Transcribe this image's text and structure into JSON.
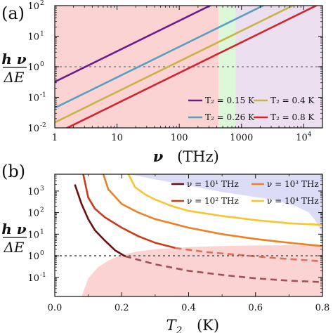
{
  "chart_data": [
    {
      "panel_label": "(a)",
      "type": "line",
      "x_scale": "log",
      "y_scale": "log",
      "xlabel_var": "ν",
      "xlabel_unit": "(THz)",
      "ylabel_num": "h ν",
      "ylabel_den": "ΔE",
      "xlim": [
        1,
        20000
      ],
      "ylim": [
        0.01,
        100
      ],
      "x_ticks": [
        {
          "v": 1,
          "label": "1"
        },
        {
          "v": 10,
          "label": "10"
        },
        {
          "v": 100,
          "label": "100"
        },
        {
          "v": 1000,
          "label": "1000"
        },
        {
          "v": 10000,
          "label": "10",
          "sup": "4"
        }
      ],
      "y_ticks": [
        {
          "v": 0.01,
          "base": "10",
          "sup": "-2"
        },
        {
          "v": 0.1,
          "base": "10",
          "sup": "-1"
        },
        {
          "v": 1,
          "base": "10",
          "sup": "0"
        },
        {
          "v": 10,
          "base": "10",
          "sup": "1"
        },
        {
          "v": 100,
          "base": "10",
          "sup": "2"
        }
      ],
      "regions": [
        {
          "x0": 1,
          "x1": 430,
          "color": "#fbd3d3"
        },
        {
          "x0": 430,
          "x1": 800,
          "color": "#dcf8d8"
        },
        {
          "x0": 800,
          "x1": 20000,
          "color": "#ebdff0"
        }
      ],
      "reference_line": {
        "y": 1,
        "color": "#999999"
      },
      "series": [
        {
          "name": "T₂ = 0.15 K",
          "color": "#6a1d8a",
          "x": [
            1,
            1000
          ],
          "y": [
            0.32,
            320
          ]
        },
        {
          "name": "T₂ = 0.26 K",
          "color": "#5a9ec0",
          "x": [
            1,
            20000
          ],
          "y": [
            0.045,
            900
          ]
        },
        {
          "name": "T₂ = 0.4 K",
          "color": "#c9b44a",
          "x": [
            1,
            20000
          ],
          "y": [
            0.015,
            300
          ]
        },
        {
          "name": "T₂ = 0.8 K",
          "color": "#d3242b",
          "x": [
            1,
            20000
          ],
          "y": [
            0.0063,
            126
          ]
        }
      ],
      "legend_placement": "bottom-right"
    },
    {
      "panel_label": "(b)",
      "type": "line",
      "x_scale": "linear",
      "y_scale": "log",
      "xlabel_var": "T",
      "xlabel_sub": "2",
      "xlabel_unit": "(K)",
      "ylabel_num": "h ν",
      "ylabel_den": "ΔE",
      "xlim": [
        0,
        0.8
      ],
      "ylim": [
        0.013,
        6000
      ],
      "x_ticks": [
        {
          "v": 0,
          "label": "0.0"
        },
        {
          "v": 0.2,
          "label": "0.2"
        },
        {
          "v": 0.4,
          "label": "0.4"
        },
        {
          "v": 0.6,
          "label": "0.6"
        },
        {
          "v": 0.8,
          "label": "0.8"
        }
      ],
      "y_ticks": [
        {
          "v": 0.1,
          "base": "10",
          "sup": "-1"
        },
        {
          "v": 1,
          "base": "10",
          "sup": "0"
        },
        {
          "v": 10,
          "base": "10",
          "sup": "1"
        },
        {
          "v": 100,
          "base": "10",
          "sup": "2"
        },
        {
          "v": 1000,
          "base": "10",
          "sup": "3"
        }
      ],
      "reference_line": {
        "y": 1,
        "color": "#777777"
      },
      "regions": [
        {
          "color": "#fbd3d3",
          "x": [
            0.08,
            0.1,
            0.13,
            0.16,
            0.2,
            0.25,
            0.3,
            0.4,
            0.5,
            0.6,
            0.7,
            0.8,
            0.8,
            0.08
          ],
          "y": [
            0.013,
            0.09,
            0.3,
            0.6,
            1.1,
            1.6,
            2.0,
            2.5,
            2.8,
            3.0,
            3.1,
            3.2,
            0.013,
            0.013
          ]
        },
        {
          "color": "#dcdcf6",
          "x": [
            0.22,
            0.35,
            0.5,
            0.65,
            0.72,
            0.76,
            0.78,
            0.8,
            0.8,
            0.22
          ],
          "y": [
            6000,
            2500,
            900,
            400,
            200,
            100,
            40,
            10,
            6000,
            6000
          ]
        }
      ],
      "series": [
        {
          "name": "ν = 10¹ THz",
          "color": "#6b0f0f",
          "solid": {
            "x": [
              0.06,
              0.08,
              0.1,
              0.12,
              0.15,
              0.18,
              0.21
            ],
            "y": [
              2000,
              250,
              50,
              15,
              5,
              1.8,
              0.95
            ]
          },
          "dashed": {
            "x": [
              0.21,
              0.3,
              0.4,
              0.5,
              0.6,
              0.7,
              0.8
            ],
            "y": [
              0.95,
              0.4,
              0.2,
              0.13,
              0.09,
              0.07,
              0.06
            ]
          }
        },
        {
          "name": "ν = 10² THz",
          "color": "#cc3a1a",
          "solid": {
            "x": [
              0.085,
              0.1,
              0.12,
              0.15,
              0.2,
              0.25,
              0.3,
              0.36
            ],
            "y": [
              6000,
              500,
              150,
              60,
              20,
              8,
              4,
              2.3
            ]
          },
          "dashed": {
            "x": [
              0.36,
              0.45,
              0.55,
              0.65,
              0.8
            ],
            "y": [
              2.3,
              1.5,
              1.1,
              0.8,
              0.55
            ]
          }
        },
        {
          "name": "ν = 10³ THz",
          "color": "#ef7f25",
          "solid": {
            "x": [
              0.145,
              0.16,
              0.2,
              0.25,
              0.3,
              0.4,
              0.5,
              0.6,
              0.7,
              0.8
            ],
            "y": [
              6000,
              1200,
              250,
              100,
              50,
              20,
              10,
              6,
              4,
              2.8
            ]
          }
        },
        {
          "name": "ν = 10⁴ THz",
          "color": "#f7c52c",
          "solid": {
            "x": [
              0.22,
              0.24,
              0.27,
              0.3,
              0.35,
              0.4,
              0.5,
              0.6,
              0.7,
              0.8
            ],
            "y": [
              6000,
              1500,
              700,
              400,
              200,
              120,
              70,
              45,
              32,
              27
            ]
          }
        }
      ],
      "legend_placement": "top-right"
    }
  ]
}
